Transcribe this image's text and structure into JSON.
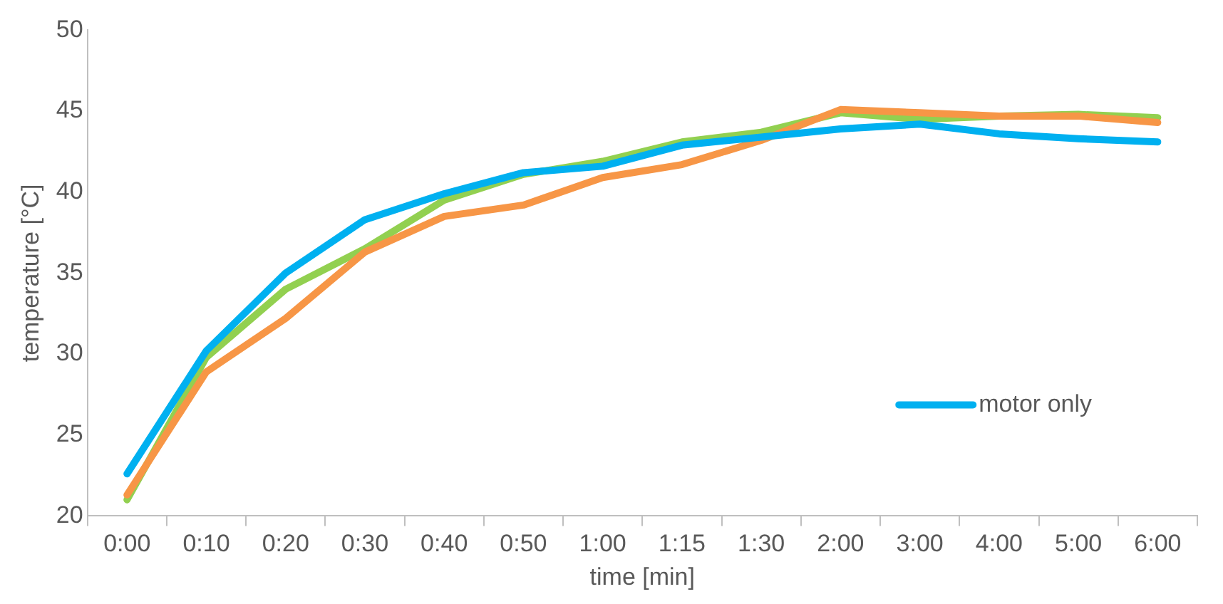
{
  "chart_data": {
    "type": "line",
    "xlabel": "time [min]",
    "ylabel": "temperature [°C]",
    "categories": [
      "0:00",
      "0:10",
      "0:20",
      "0:30",
      "0:40",
      "0:50",
      "1:00",
      "1:15",
      "1:30",
      "2:00",
      "3:00",
      "4:00",
      "5:00",
      "6:00"
    ],
    "ylim": [
      20,
      50
    ],
    "yticks": [
      20,
      25,
      30,
      35,
      40,
      45,
      50
    ],
    "grid": false,
    "legend": "bottom right",
    "marker": "none",
    "line_style": "solid",
    "series": [
      {
        "name": "motor only",
        "color": "#00b0f0",
        "values": [
          22.6,
          30.2,
          35.0,
          38.3,
          39.9,
          41.2,
          41.6,
          42.9,
          43.4,
          43.9,
          44.2,
          43.6,
          43.3,
          43.1
        ]
      },
      {
        "color": "#f79646",
        "values": [
          21.3,
          28.9,
          32.2,
          36.3,
          38.5,
          39.2,
          40.9,
          41.7,
          43.2,
          45.1,
          44.9,
          44.7,
          44.7,
          44.3
        ]
      },
      {
        "color": "#92d050",
        "values": [
          21.0,
          29.8,
          34.0,
          36.5,
          39.5,
          41.1,
          41.9,
          43.1,
          43.7,
          44.9,
          44.5,
          44.7,
          44.8,
          44.6
        ]
      }
    ]
  }
}
